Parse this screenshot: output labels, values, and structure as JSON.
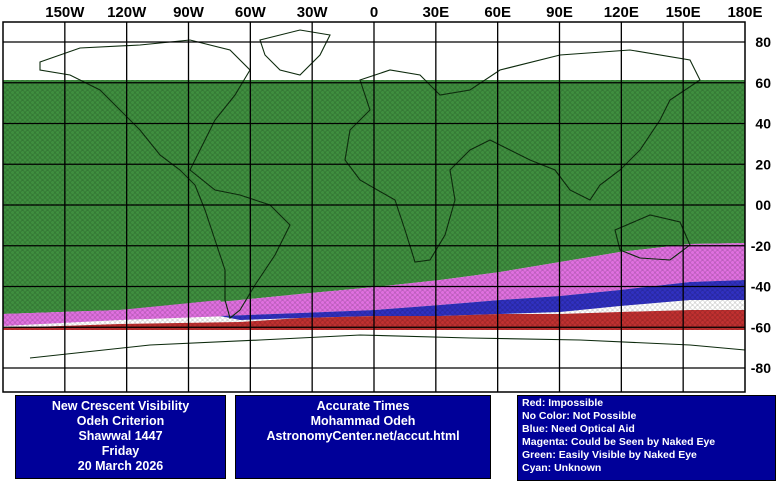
{
  "map": {
    "longitude_labels": [
      "150W",
      "120W",
      "90W",
      "60W",
      "30W",
      "0",
      "30E",
      "60E",
      "90E",
      "120E",
      "150E",
      "180E"
    ],
    "latitude_labels": [
      "80",
      "60",
      "40",
      "20",
      "00",
      "-20",
      "-40",
      "-60",
      "-80"
    ]
  },
  "info": {
    "title_box": [
      "New Crescent Visibility",
      "Odeh Criterion",
      "Shawwal 1447",
      "Friday",
      "20 March 2026"
    ],
    "credit_box": [
      "Accurate Times",
      "Mohammad Odeh",
      "AstronomyCenter.net/accut.html"
    ],
    "legend_box": [
      "Red: Impossible",
      "No Color: Not Possible",
      "Blue: Need Optical Aid",
      "Magenta: Could be Seen by Naked Eye",
      "Green: Easily Visible by Naked Eye",
      "Cyan: Unknown"
    ]
  }
}
